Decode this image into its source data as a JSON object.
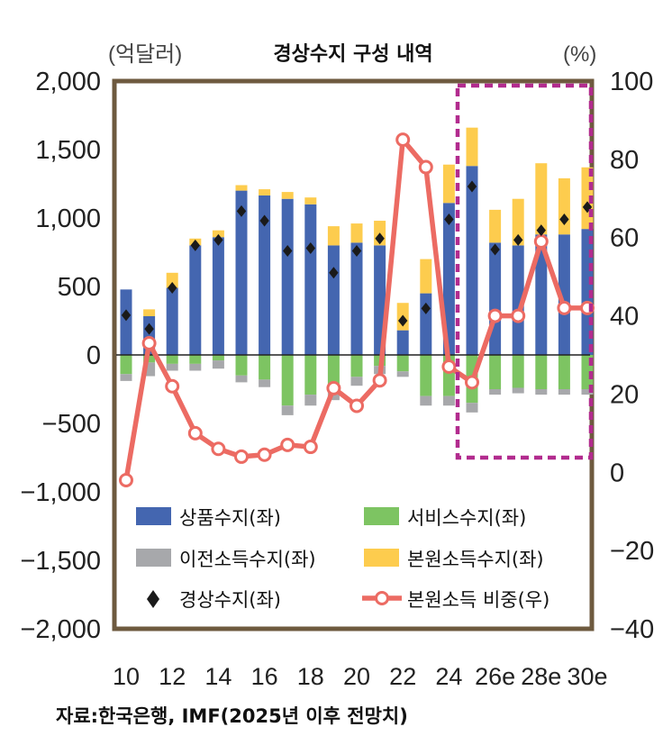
{
  "chart_data": {
    "type": "bar",
    "title": "경상수지 구성 내역",
    "left_unit": "(억달러)",
    "right_unit": "(%)",
    "x_tick_labels": [
      "10",
      "12",
      "14",
      "16",
      "18",
      "20",
      "22",
      "24",
      "26e",
      "28e",
      "30e"
    ],
    "years": [
      2010,
      2011,
      2012,
      2013,
      2014,
      2015,
      2016,
      2017,
      2018,
      2019,
      2020,
      2021,
      2022,
      2023,
      2024,
      2025,
      2026,
      2027,
      2028,
      2029,
      2030
    ],
    "ylim_left": [
      -2000,
      2000
    ],
    "yticks_left": [
      "2,000",
      "1,500",
      "1,000",
      "500",
      "0",
      "−500",
      "−1,000",
      "−1,500",
      "−2,000"
    ],
    "ylim_right": [
      -40,
      100
    ],
    "yticks_right": [
      "100",
      "80",
      "60",
      "40",
      "20",
      "0",
      "−20",
      "−40"
    ],
    "projection_start_year": 2025,
    "series": [
      {
        "name": "상품수지(좌)",
        "axis": "left",
        "kind": "bar",
        "color": "#4466b0",
        "values": [
          478,
          283,
          490,
          800,
          860,
          1200,
          1165,
          1140,
          1100,
          800,
          820,
          800,
          180,
          450,
          1110,
          1380,
          820,
          800,
          880,
          880,
          920
        ]
      },
      {
        "name": "서비스수지(좌)",
        "axis": "left",
        "kind": "bar",
        "color": "#7dc462",
        "values": [
          -140,
          -55,
          -65,
          -65,
          -40,
          -150,
          -180,
          -370,
          -290,
          -260,
          -160,
          -80,
          -120,
          -300,
          -300,
          -350,
          -250,
          -240,
          -250,
          -250,
          -250
        ]
      },
      {
        "name": "이전소득수지(좌)",
        "axis": "left",
        "kind": "bar",
        "color": "#a7a8ab",
        "values": [
          -50,
          -100,
          -50,
          -50,
          -60,
          -50,
          -55,
          -70,
          -80,
          -70,
          -65,
          -60,
          -40,
          -70,
          -70,
          -70,
          -40,
          -40,
          -40,
          -40,
          -40
        ]
      },
      {
        "name": "본원소득수지(좌)",
        "axis": "left",
        "kind": "bar",
        "color": "#fdcc4e",
        "values": [
          0,
          50,
          110,
          50,
          50,
          40,
          45,
          50,
          50,
          140,
          140,
          180,
          200,
          250,
          280,
          280,
          240,
          340,
          520,
          410,
          450
        ]
      },
      {
        "name": "경상수지(좌)",
        "axis": "left",
        "kind": "marker",
        "color": "#1a1a1a",
        "values": [
          290,
          190,
          490,
          800,
          840,
          1050,
          980,
          760,
          780,
          600,
          760,
          850,
          250,
          340,
          990,
          1230,
          770,
          840,
          910,
          990,
          1080
        ]
      },
      {
        "name": "본원소득 비중(우)",
        "axis": "right",
        "kind": "line",
        "color": "#ec6b63",
        "values": [
          -2,
          33,
          22,
          10,
          6,
          4,
          4.5,
          7,
          6.5,
          21.5,
          17,
          23.5,
          85,
          78,
          27,
          23,
          40,
          40,
          59,
          42,
          42
        ]
      }
    ],
    "legend_position": "bottom-inside",
    "source": "자료:한국은행, IMF(2025년 이후 전망치)"
  }
}
